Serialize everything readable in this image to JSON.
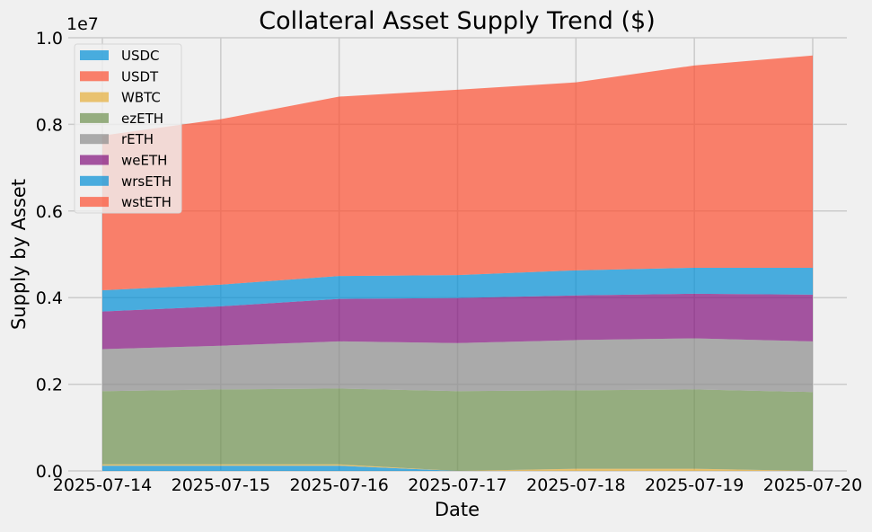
{
  "chart_data": {
    "type": "area",
    "stacked": true,
    "title": "Collateral Asset Supply Trend ($)",
    "xlabel": "Date",
    "ylabel": "Supply by Asset",
    "y_offset_label": "1e7",
    "ylim": [
      0,
      10000000
    ],
    "yticks": [
      0,
      2000000,
      4000000,
      6000000,
      8000000,
      10000000
    ],
    "ytick_labels": [
      "0.0",
      "0.2",
      "0.4",
      "0.6",
      "0.8",
      "1.0"
    ],
    "x": [
      "2025-07-14",
      "2025-07-15",
      "2025-07-16",
      "2025-07-17",
      "2025-07-18",
      "2025-07-19",
      "2025-07-20"
    ],
    "grid": true,
    "legend_position": "top-left",
    "series": [
      {
        "name": "USDC",
        "color": "#008fd5",
        "values": [
          120000,
          120000,
          120000,
          0,
          0,
          0,
          0
        ]
      },
      {
        "name": "USDT",
        "color": "#fc4f30",
        "values": [
          0,
          0,
          0,
          0,
          0,
          0,
          0
        ]
      },
      {
        "name": "WBTC",
        "color": "#e5ae38",
        "values": [
          30000,
          30000,
          30000,
          0,
          50000,
          50000,
          0
        ]
      },
      {
        "name": "ezETH",
        "color": "#6d904f",
        "values": [
          1690000,
          1730000,
          1750000,
          1840000,
          1810000,
          1830000,
          1820000
        ]
      },
      {
        "name": "rETH",
        "color": "#8b8b8b",
        "values": [
          970000,
          1010000,
          1090000,
          1110000,
          1160000,
          1180000,
          1170000
        ]
      },
      {
        "name": "weETH",
        "color": "#810f7c",
        "values": [
          870000,
          910000,
          980000,
          1040000,
          1030000,
          1030000,
          1080000
        ]
      },
      {
        "name": "wrsETH",
        "color": "#008fd5",
        "values": [
          490000,
          500000,
          530000,
          530000,
          580000,
          600000,
          620000
        ]
      },
      {
        "name": "wstETH",
        "color": "#fc4f30",
        "values": [
          3570000,
          3820000,
          4140000,
          4280000,
          4340000,
          4670000,
          4900000
        ]
      }
    ]
  }
}
